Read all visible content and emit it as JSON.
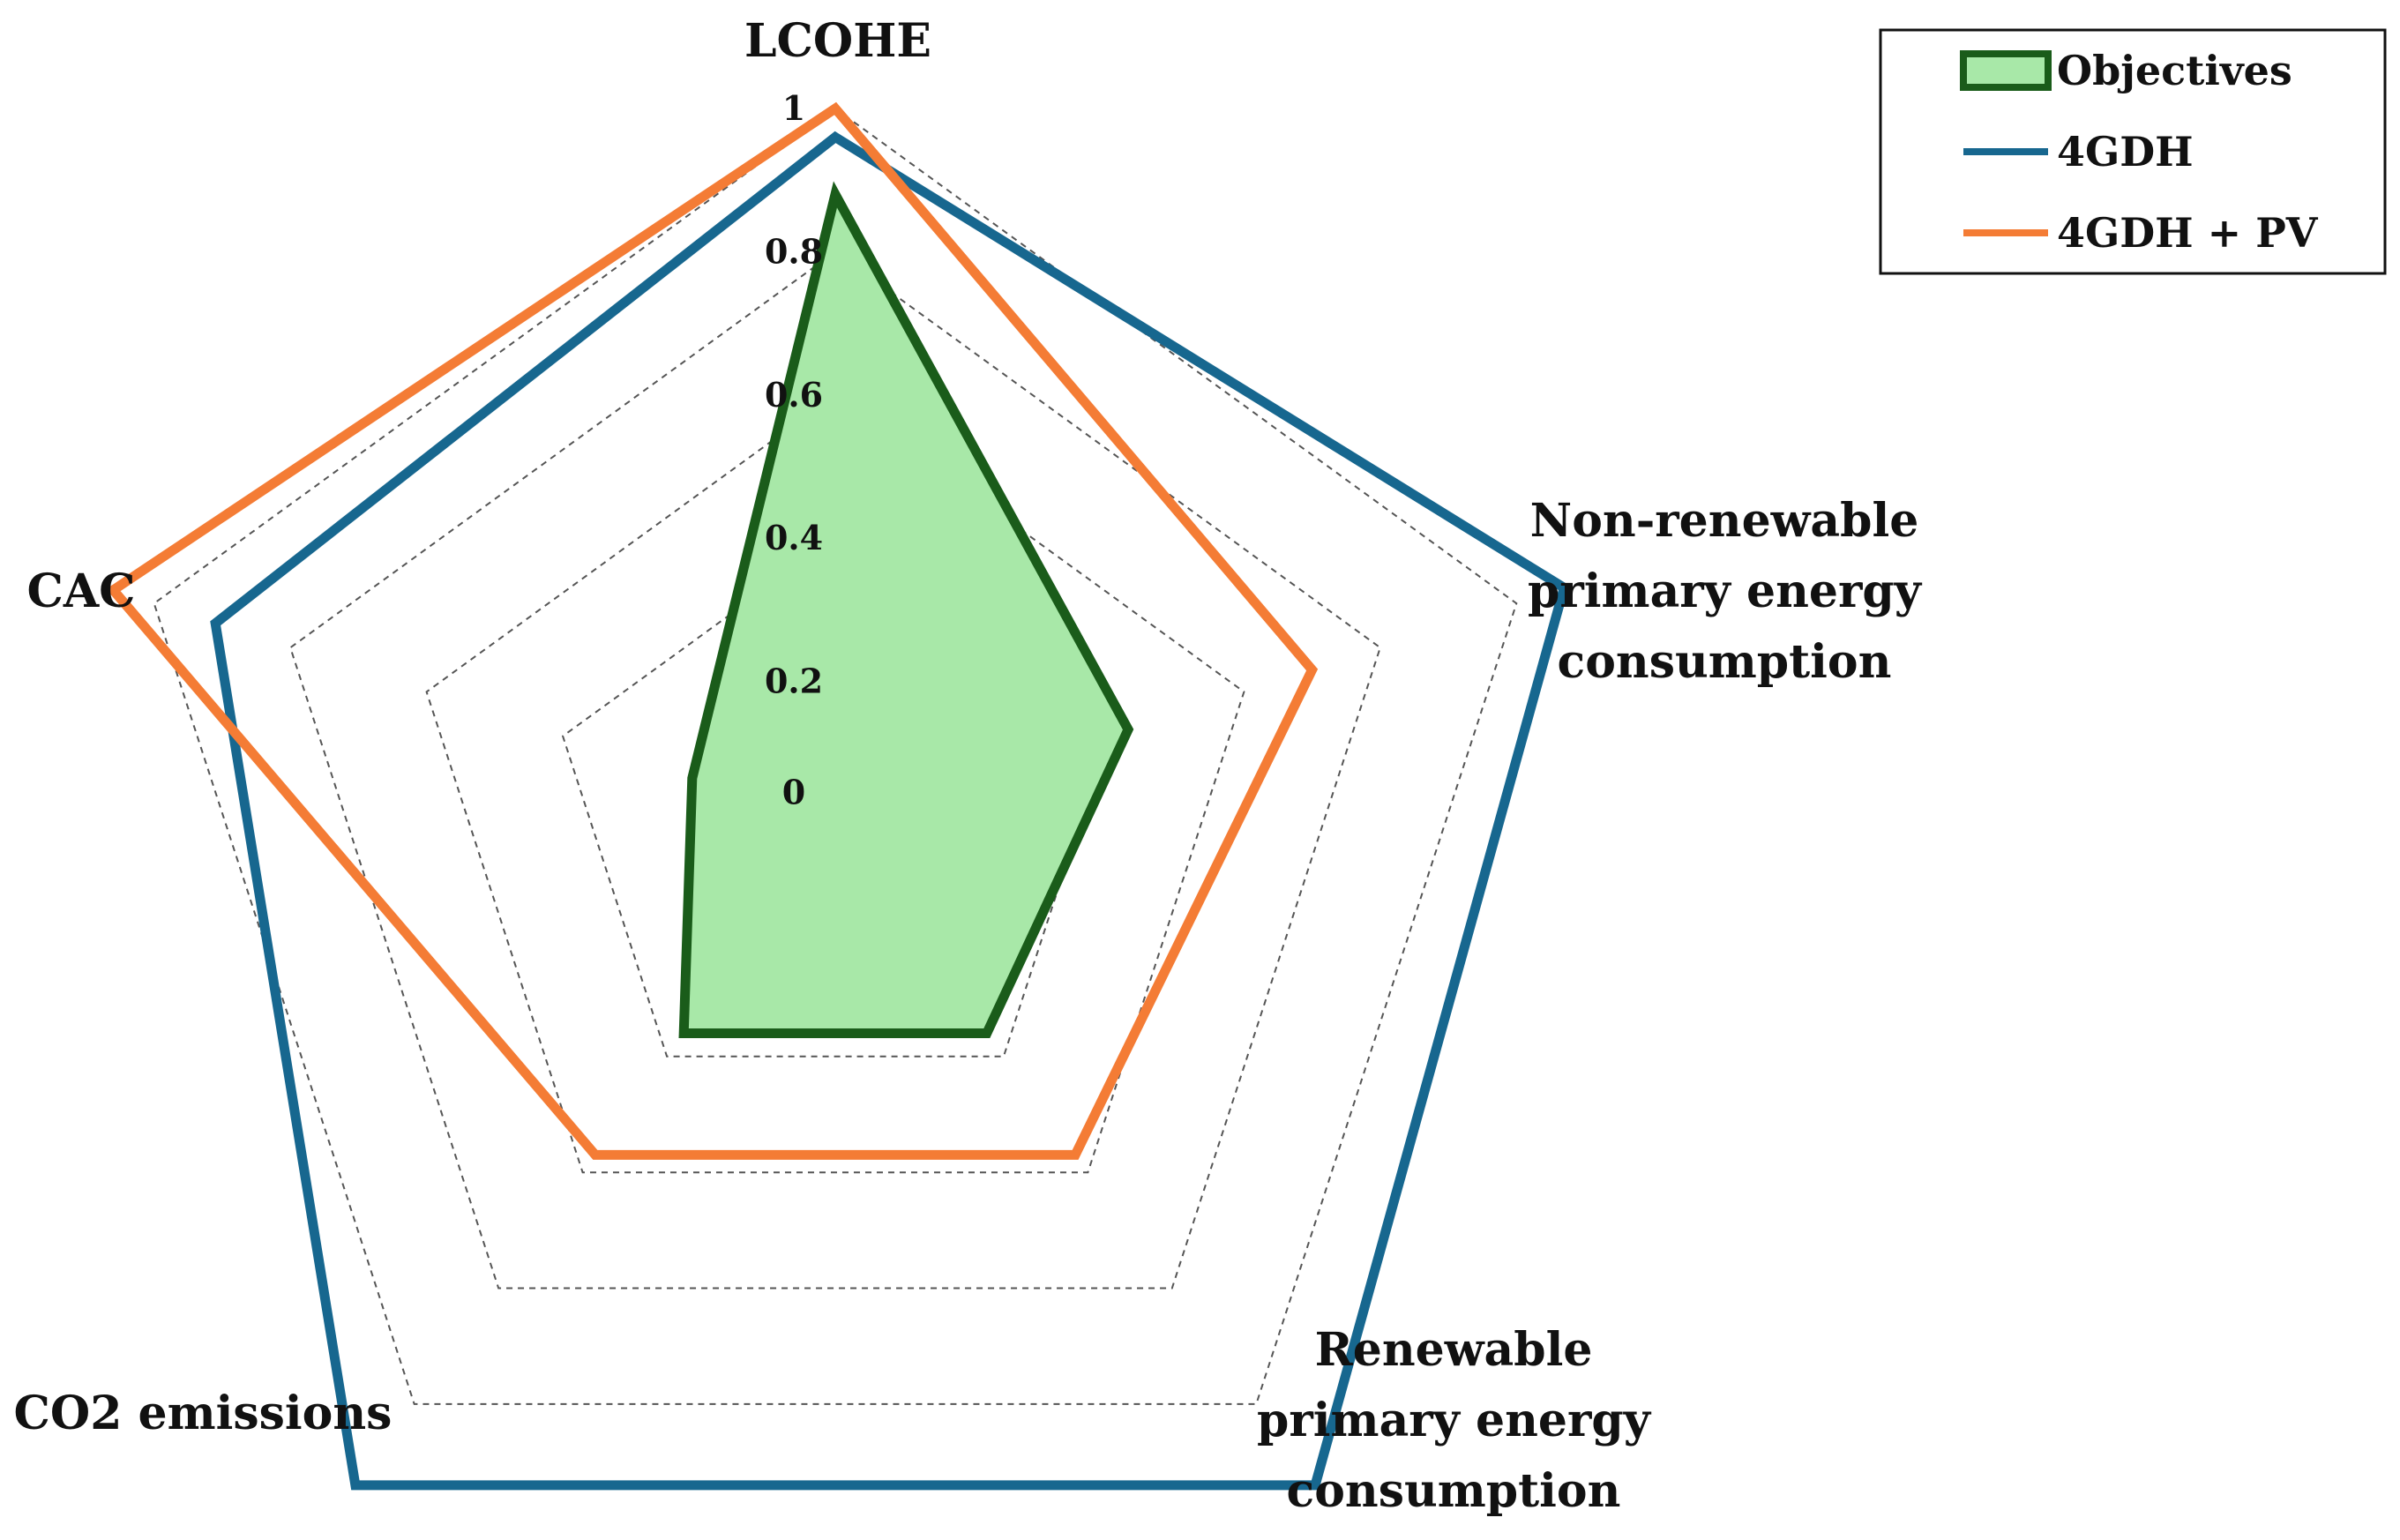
{
  "chart_data": {
    "type": "radar",
    "axes": [
      {
        "lines": [
          "LCOHE"
        ]
      },
      {
        "lines": [
          "Non-renewable",
          "primary energy",
          "consumption"
        ]
      },
      {
        "lines": [
          "Renewable",
          "primary energy",
          "consumption"
        ]
      },
      {
        "lines": [
          "CO2 emissions"
        ]
      },
      {
        "lines": [
          "CAC"
        ]
      }
    ],
    "rlim": [
      0,
      1
    ],
    "ticks": [
      "0",
      "0.2",
      "0.4",
      "0.6",
      "0.8",
      "1"
    ],
    "tick_values": [
      0,
      0.2,
      0.4,
      0.6,
      0.8,
      1
    ],
    "grid": true,
    "grid_rings": [
      0,
      0.2,
      0.4,
      0.6,
      0.8,
      1
    ],
    "legend": "top-right",
    "series": [
      {
        "name": "Objectives",
        "values": [
          0.88,
          0.43,
          0.36,
          0.36,
          0.21
        ],
        "color": "#1a5c1a",
        "fill": "#a8e8a8",
        "filled": true
      },
      {
        "name": "4GDH",
        "values": [
          0.96,
          1.07,
          1.14,
          1.14,
          0.91
        ],
        "color": "#17678f",
        "filled": false
      },
      {
        "name": "4GDH + PV",
        "values": [
          1.0,
          0.7,
          0.57,
          0.57,
          1.06
        ],
        "color": "#f47c35",
        "filled": false
      }
    ]
  }
}
